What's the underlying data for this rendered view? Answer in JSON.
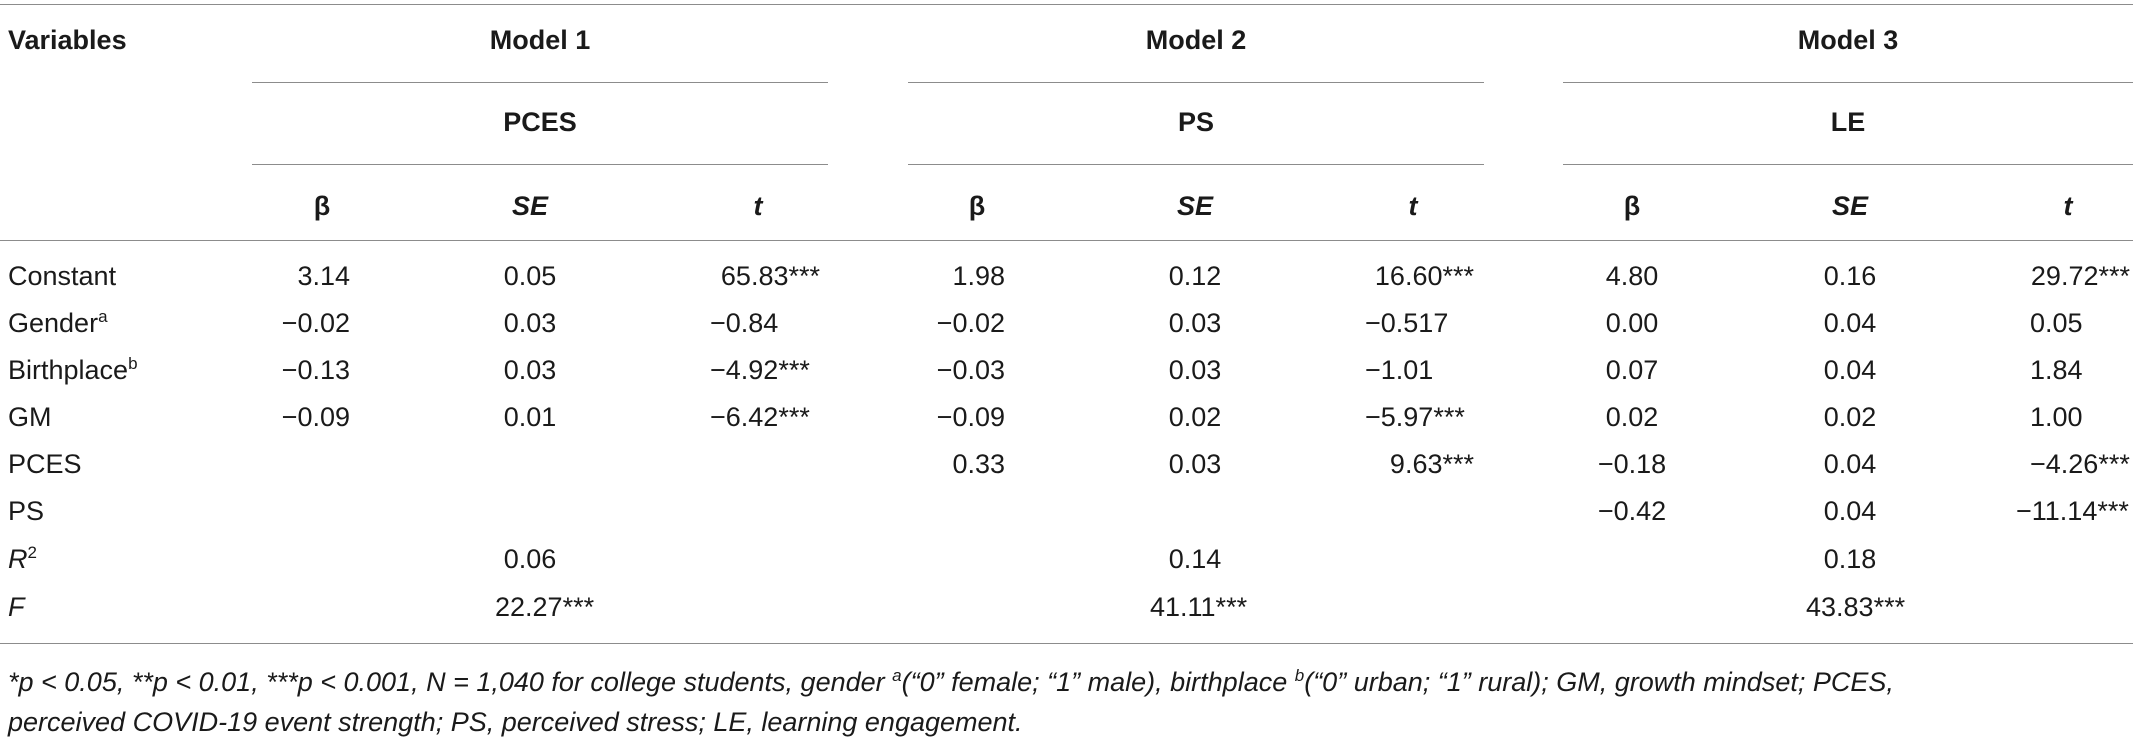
{
  "header": {
    "variables": "Variables",
    "models": [
      {
        "name": "Model 1",
        "dv": "PCES"
      },
      {
        "name": "Model 2",
        "dv": "PS"
      },
      {
        "name": "Model 3",
        "dv": "LE"
      }
    ],
    "stat_beta": "β",
    "stat_se": "SE",
    "stat_t": "t"
  },
  "rows": [
    {
      "label": "Constant",
      "sup": "",
      "cells": [
        "3.14",
        "0.05",
        "65.83***",
        "1.98",
        "0.12",
        "16.60***",
        "4.80",
        "0.16",
        "29.72***"
      ]
    },
    {
      "label": "Gender",
      "sup": "a",
      "cells": [
        "−0.02",
        "0.03",
        "−0.84",
        "−0.02",
        "0.03",
        "−0.517",
        "0.00",
        "0.04",
        "0.05"
      ]
    },
    {
      "label": "Birthplace",
      "sup": "b",
      "cells": [
        "−0.13",
        "0.03",
        "−4.92***",
        "−0.03",
        "0.03",
        "−1.01",
        "0.07",
        "0.04",
        "1.84"
      ]
    },
    {
      "label": "GM",
      "sup": "",
      "cells": [
        "−0.09",
        "0.01",
        "−6.42***",
        "−0.09",
        "0.02",
        "−5.97***",
        "0.02",
        "0.02",
        "1.00"
      ]
    },
    {
      "label": "PCES",
      "sup": "",
      "cells": [
        "",
        "",
        "",
        "0.33",
        "0.03",
        "9.63***",
        "−0.18",
        "0.04",
        "−4.26***"
      ]
    },
    {
      "label": "PS",
      "sup": "",
      "cells": [
        "",
        "",
        "",
        "",
        "",
        "",
        "−0.42",
        "0.04",
        "−11.14***"
      ]
    }
  ],
  "r2": {
    "label": "R",
    "sup": "2",
    "values": [
      "0.06",
      "0.14",
      "0.18"
    ]
  },
  "f": {
    "label": "F",
    "values": [
      "22.27***",
      "41.11***",
      "43.83***"
    ]
  },
  "footnote": {
    "line1_a": "*p < 0.05, **p < 0.01, ***p < 0.001, N = 1,040 for college students, gender ",
    "line1_sup_a": "a",
    "line1_b": "(“0” female; “1” male), birthplace ",
    "line1_sup_b": "b",
    "line1_c": "(“0” urban; “1” rural); GM, growth mindset; PCES,",
    "line2": "perceived COVID-19 event strength; PS, perceived stress; LE, learning engagement."
  }
}
